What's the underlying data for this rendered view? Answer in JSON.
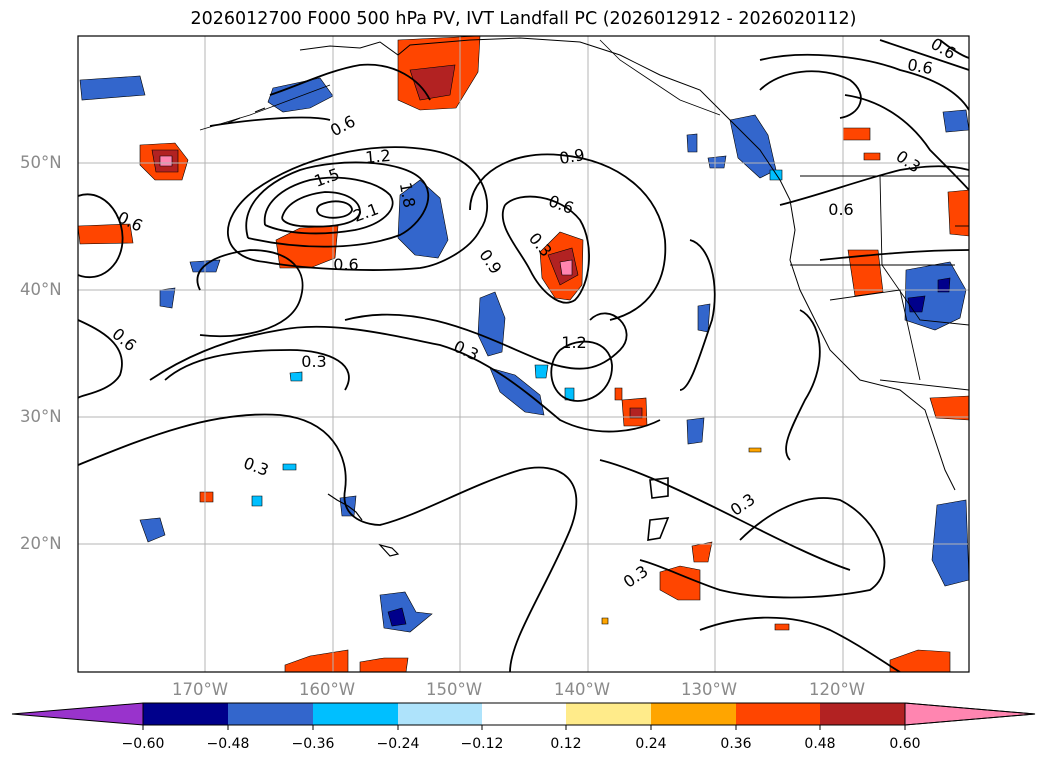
{
  "title": "2026012700 F000 500 hPa PV, IVT Landfall PC (2026012912 - 2026020112)",
  "lat_labels": [
    "50°N",
    "40°N",
    "30°N",
    "20°N"
  ],
  "lon_labels": [
    "170°W",
    "160°W",
    "150°W",
    "140°W",
    "130°W",
    "120°W"
  ],
  "contour_labels": [
    "0.6",
    "1.2",
    "1.5",
    "2.1",
    "1.8",
    "0.9",
    "0.6",
    "0.3",
    "0.9",
    "0.6",
    "0.6",
    "0.3",
    "1.2",
    "0.6",
    "0.3",
    "0.3",
    "0.3",
    "0.3",
    "0.6",
    "0.6",
    "0.3",
    "0.6"
  ],
  "colorbar": {
    "colors": [
      "#9933cc",
      "#8833cc",
      "#00008b",
      "#3366cc",
      "#00bfff",
      "#aee3fb",
      "#ffffff",
      "#ffeb8a",
      "#ffa500",
      "#ff4500",
      "#b22222",
      "#ff85b0",
      "#ff85b0"
    ],
    "tick_labels": [
      "−0.60",
      "−0.48",
      "−0.36",
      "−0.24",
      "−0.12",
      "0.12",
      "0.24",
      "0.36",
      "0.48",
      "0.60"
    ]
  }
}
